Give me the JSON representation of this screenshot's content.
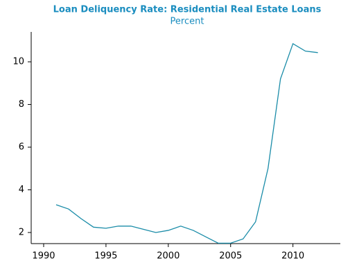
{
  "chart_data": {
    "type": "line",
    "title": "Loan Deliquency Rate: Residential Real Estate Loans",
    "subtitle": "Percent",
    "x": [
      1991,
      1992,
      1993,
      1994,
      1995,
      1996,
      1997,
      1998,
      1999,
      2000,
      2001,
      2002,
      2003,
      2004,
      2005,
      2006,
      2007,
      2008,
      2009,
      2010,
      2011,
      2012
    ],
    "series": [
      {
        "color": "#1a8ca8",
        "values": [
          3.3,
          3.1,
          2.65,
          2.25,
          2.2,
          2.3,
          2.3,
          2.15,
          2.0,
          2.1,
          2.3,
          2.1,
          1.8,
          1.5,
          1.5,
          1.7,
          2.5,
          5.0,
          9.2,
          10.85,
          10.5,
          10.43
        ]
      }
    ],
    "xlim": [
      1989,
      2013.8
    ],
    "xticks": [
      1990,
      1995,
      2000,
      2005,
      2010
    ],
    "ylim": [
      1.48,
      11.4
    ],
    "yticks": [
      2,
      4,
      6,
      8,
      10
    ]
  }
}
